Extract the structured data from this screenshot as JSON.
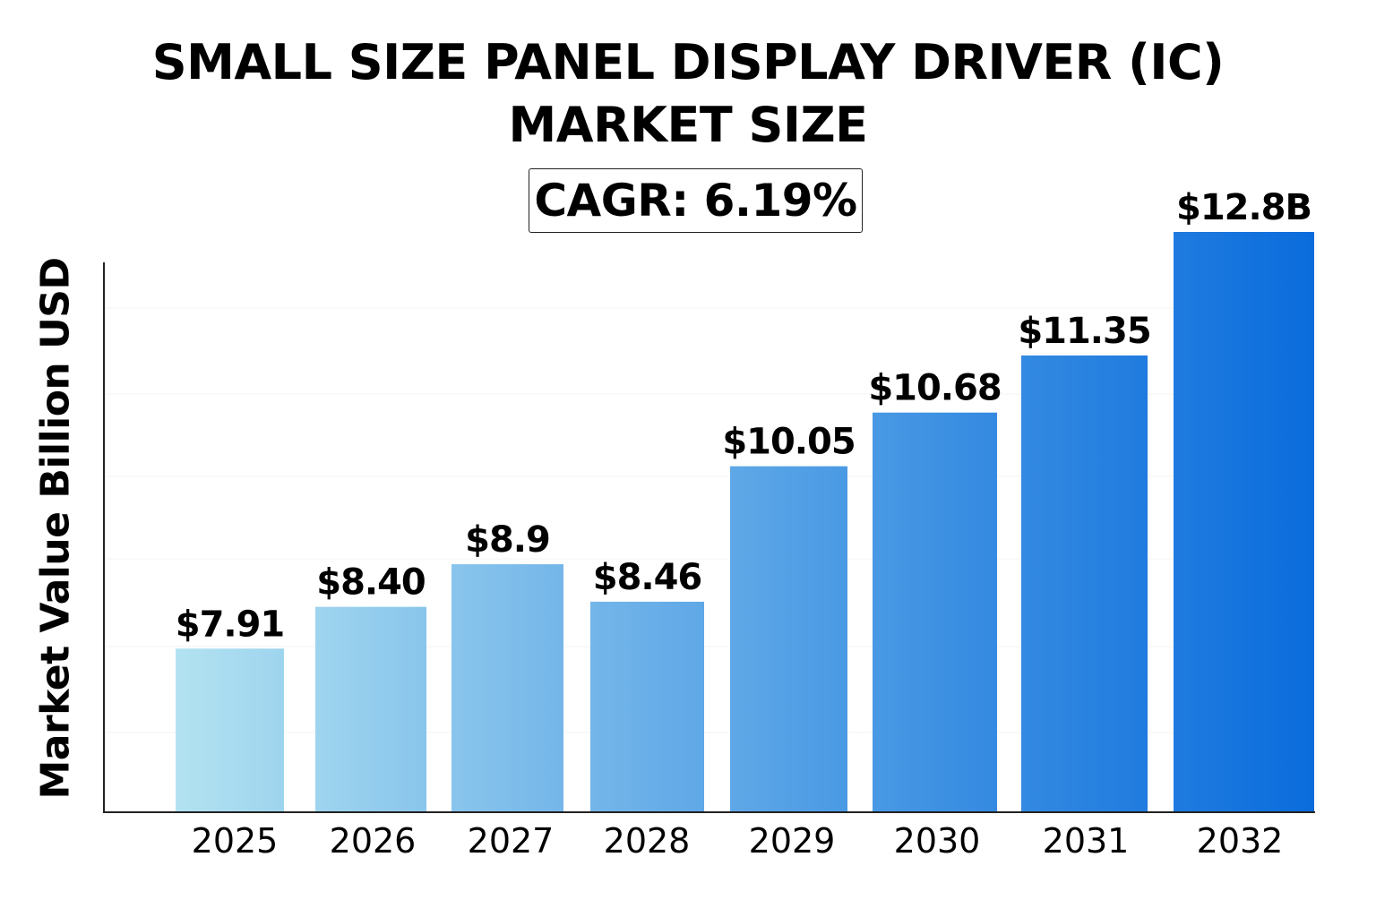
{
  "chart_data": {
    "type": "bar",
    "title": "SMALL SIZE PANEL DISPLAY DRIVER (IC) MARKET SIZE",
    "title_lines": [
      "SMALL SIZE PANEL DISPLAY DRIVER (IC)",
      "MARKET SIZE"
    ],
    "subtitle": "CAGR: 6.19%",
    "xlabel": "",
    "ylabel": "Market Value Billion USD",
    "categories": [
      "2025",
      "2026",
      "2027",
      "2028",
      "2029",
      "2030",
      "2031",
      "2032"
    ],
    "values": [
      7.91,
      8.4,
      8.9,
      8.46,
      10.05,
      10.68,
      11.35,
      12.8
    ],
    "data_labels": [
      "$7.91",
      "$8.40",
      "$8.9",
      "$8.46",
      "$10.05",
      "$10.68",
      "$11.35",
      "$12.8B"
    ],
    "ylim": [
      6,
      12.8
    ],
    "grid": false,
    "legend": "none",
    "colors": {
      "bar_start": "#b3e3f1",
      "bar_end": "#0a6cdc",
      "axis": "#222222",
      "text": "#000000"
    }
  }
}
